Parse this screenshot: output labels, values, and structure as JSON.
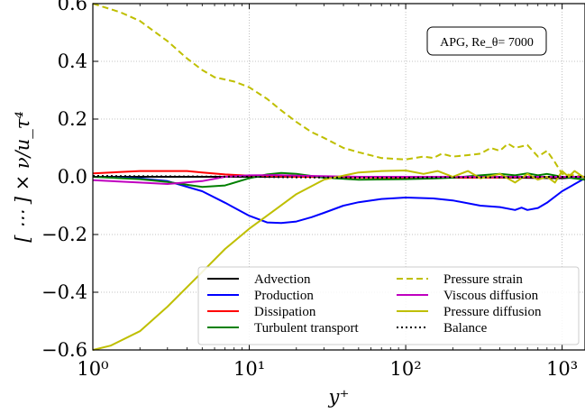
{
  "chart_data": {
    "type": "line",
    "xscale": "log",
    "xlim": [
      1,
      1400
    ],
    "ylim": [
      -0.6,
      0.6
    ],
    "xlabel": "y⁺",
    "ylabel": "[ ⋯ ] × ν/u_τ⁴",
    "x_ticks": [
      1,
      10,
      100,
      1000
    ],
    "x_tick_labels": [
      "10⁰",
      "10¹",
      "10²",
      "10³"
    ],
    "y_ticks": [
      -0.6,
      -0.4,
      -0.2,
      0.0,
      0.2,
      0.4,
      0.6
    ],
    "y_tick_labels": [
      "−0.6",
      "−0.4",
      "−0.2",
      "0.0",
      "0.2",
      "0.4",
      "0.6"
    ],
    "grid": true,
    "legend_position": "bottom-right",
    "annotation": "APG, Re_θ= 7000",
    "series": [
      {
        "name": "Advection",
        "color": "#000000",
        "dash": "solid",
        "x": [
          1,
          2,
          5,
          10,
          20,
          50,
          100,
          200,
          500,
          1000,
          1400
        ],
        "y": [
          0.0,
          0.0,
          0.0,
          0.0,
          0.0,
          0.0,
          0.0,
          0.0,
          -0.003,
          -0.005,
          0.0
        ]
      },
      {
        "name": "Production",
        "color": "#0000ff",
        "dash": "solid",
        "x": [
          1,
          2,
          3,
          5,
          7,
          10,
          13,
          16,
          20,
          25,
          30,
          40,
          50,
          70,
          100,
          150,
          200,
          300,
          400,
          500,
          550,
          600,
          700,
          800,
          1000,
          1400
        ],
        "y": [
          0.0,
          -0.006,
          -0.015,
          -0.05,
          -0.09,
          -0.135,
          -0.158,
          -0.16,
          -0.155,
          -0.14,
          -0.125,
          -0.1,
          -0.088,
          -0.077,
          -0.072,
          -0.075,
          -0.082,
          -0.1,
          -0.105,
          -0.115,
          -0.107,
          -0.115,
          -0.108,
          -0.09,
          -0.05,
          -0.005
        ]
      },
      {
        "name": "Dissipation",
        "color": "#ff0000",
        "dash": "solid",
        "x": [
          1,
          2,
          3,
          4,
          5,
          7,
          10,
          15,
          20,
          50,
          100,
          200,
          500,
          1000,
          1400
        ],
        "y": [
          0.012,
          0.02,
          0.02,
          0.02,
          0.015,
          0.008,
          0.004,
          0.002,
          0.0,
          -0.002,
          -0.003,
          -0.003,
          -0.002,
          -0.001,
          0.0
        ]
      },
      {
        "name": "Turbulent transport",
        "color": "#008000",
        "dash": "solid",
        "x": [
          1,
          2,
          3,
          5,
          7,
          10,
          13,
          16,
          20,
          30,
          50,
          100,
          150,
          200,
          300,
          400,
          500,
          600,
          700,
          800,
          1000,
          1400
        ],
        "y": [
          0.0,
          -0.008,
          -0.018,
          -0.035,
          -0.03,
          -0.005,
          0.008,
          0.013,
          0.01,
          -0.003,
          -0.01,
          -0.008,
          -0.006,
          -0.003,
          0.005,
          0.01,
          0.005,
          0.012,
          0.005,
          0.01,
          0.0,
          -0.01
        ]
      },
      {
        "name": "Pressure strain",
        "color": "#bfbf00",
        "dash": "dashed",
        "x": [
          1,
          1.5,
          2,
          3,
          4,
          5,
          6,
          8,
          10,
          13,
          16,
          20,
          25,
          30,
          40,
          50,
          70,
          100,
          130,
          150,
          170,
          200,
          250,
          300,
          350,
          400,
          450,
          500,
          600,
          700,
          800,
          900,
          1000,
          1200,
          1400
        ],
        "y": [
          0.6,
          0.57,
          0.54,
          0.47,
          0.41,
          0.37,
          0.345,
          0.33,
          0.31,
          0.27,
          0.23,
          0.19,
          0.155,
          0.135,
          0.1,
          0.085,
          0.065,
          0.06,
          0.07,
          0.065,
          0.08,
          0.07,
          0.075,
          0.08,
          0.1,
          0.09,
          0.115,
          0.1,
          0.11,
          0.07,
          0.09,
          0.05,
          0.01,
          0.005,
          0.0
        ]
      },
      {
        "name": "Viscous diffusion",
        "color": "#bf00bf",
        "dash": "solid",
        "x": [
          1,
          2,
          3,
          5,
          7,
          10,
          15,
          20,
          50,
          100,
          200,
          500,
          1000,
          1400
        ],
        "y": [
          -0.012,
          -0.02,
          -0.025,
          -0.015,
          0.0,
          0.005,
          0.006,
          0.004,
          0.0,
          0.0,
          0.0,
          0.0,
          0.0,
          0.0
        ]
      },
      {
        "name": "Pressure diffusion",
        "color": "#bfbf00",
        "dash": "solid",
        "x": [
          1,
          1.3,
          2,
          3,
          5,
          7,
          10,
          15,
          20,
          30,
          50,
          70,
          100,
          130,
          160,
          200,
          250,
          300,
          400,
          500,
          600,
          700,
          800,
          900,
          1000,
          1100,
          1200,
          1400
        ],
        "y": [
          -0.6,
          -0.585,
          -0.535,
          -0.45,
          -0.33,
          -0.25,
          -0.18,
          -0.11,
          -0.06,
          -0.01,
          0.015,
          0.02,
          0.022,
          0.01,
          0.02,
          0.0,
          0.02,
          -0.005,
          0.01,
          -0.02,
          0.01,
          -0.01,
          0.0,
          -0.02,
          0.02,
          0.0,
          0.02,
          -0.005
        ]
      },
      {
        "name": "Balance",
        "color": "#000000",
        "dash": "dotted",
        "x": [
          1,
          2,
          5,
          10,
          20,
          50,
          100,
          200,
          500,
          1000,
          1400
        ],
        "y": [
          0.003,
          0.002,
          0.001,
          0.0,
          -0.002,
          -0.003,
          -0.003,
          -0.002,
          -0.002,
          0.0,
          0.0
        ]
      }
    ]
  }
}
